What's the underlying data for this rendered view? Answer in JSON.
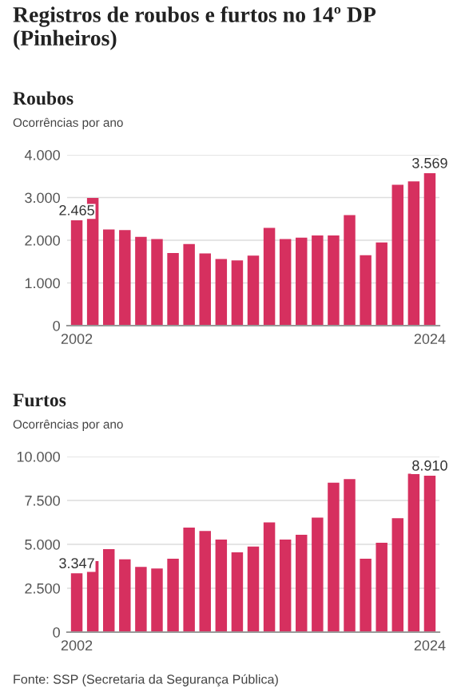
{
  "chart_data": [
    {
      "type": "bar",
      "title": "Registros de roubos e furtos no 14º DP (Pinheiros)",
      "subtitle": "Roubos",
      "ylabel": "Ocorrências por ano",
      "categories": [
        "2002",
        null,
        null,
        null,
        null,
        null,
        null,
        null,
        null,
        null,
        null,
        null,
        null,
        null,
        null,
        null,
        null,
        null,
        null,
        null,
        null,
        null,
        "2024"
      ],
      "values": [
        2465,
        2990,
        2250,
        2240,
        2080,
        2030,
        1700,
        1910,
        1690,
        1560,
        1530,
        1640,
        2290,
        2030,
        2060,
        2110,
        2110,
        2590,
        1650,
        1950,
        3300,
        3380,
        3569
      ],
      "value_labels": [
        "2.465",
        null,
        null,
        null,
        null,
        null,
        null,
        null,
        null,
        null,
        null,
        null,
        null,
        null,
        null,
        null,
        null,
        null,
        null,
        null,
        null,
        null,
        "3.569"
      ],
      "color": "#d6305f",
      "ylim": [
        0,
        4000
      ],
      "yticks": [
        {
          "value": 0,
          "label": "0"
        },
        {
          "value": 1000,
          "label": "1.000"
        },
        {
          "value": 2000,
          "label": "2.000"
        },
        {
          "value": 3000,
          "label": "3.000"
        },
        {
          "value": 4000,
          "label": "4.000"
        }
      ],
      "grid": "y",
      "legend": false
    },
    {
      "type": "bar",
      "subtitle": "Furtos",
      "ylabel": "Ocorrências por ano",
      "categories": [
        "2002",
        null,
        null,
        null,
        null,
        null,
        null,
        null,
        null,
        null,
        null,
        null,
        null,
        null,
        null,
        null,
        null,
        null,
        null,
        null,
        null,
        null,
        "2024"
      ],
      "values": [
        3347,
        4050,
        4730,
        4150,
        3720,
        3630,
        4180,
        5950,
        5760,
        5270,
        4540,
        4880,
        6250,
        5270,
        5550,
        6520,
        8510,
        8720,
        4180,
        5090,
        6490,
        9020,
        8910
      ],
      "value_labels": [
        "3.347",
        null,
        null,
        null,
        null,
        null,
        null,
        null,
        null,
        null,
        null,
        null,
        null,
        null,
        null,
        null,
        null,
        null,
        null,
        null,
        null,
        null,
        "8.910"
      ],
      "color": "#d6305f",
      "ylim": [
        0,
        10000
      ],
      "yticks": [
        {
          "value": 0,
          "label": "0"
        },
        {
          "value": 2500,
          "label": "2.500"
        },
        {
          "value": 5000,
          "label": "5.000"
        },
        {
          "value": 7500,
          "label": "7.500"
        },
        {
          "value": 10000,
          "label": "10.000"
        }
      ],
      "grid": "y",
      "legend": false,
      "annotations": [
        "Fonte: SSP (Secretaria da Segurança Pública)"
      ]
    }
  ]
}
